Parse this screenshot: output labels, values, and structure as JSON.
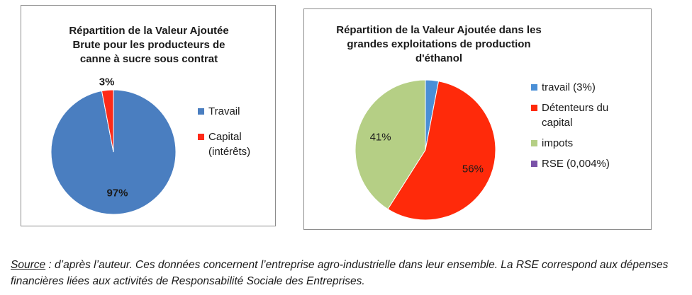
{
  "chart_data": [
    {
      "type": "pie",
      "title": "Répartition de la Valeur Ajoutée\nBrute pour les producteurs de\ncanne à sucre sous contrat",
      "categories": [
        "Travail",
        "Capital\n(intérêts)"
      ],
      "values": [
        97,
        3
      ],
      "data_labels": [
        "97%",
        "3%"
      ],
      "colors": [
        "#4a7ec0",
        "#ff2a18"
      ],
      "legend_placement": "right"
    },
    {
      "type": "pie",
      "title": "Répartition de la Valeur Ajoutée dans les\ngrandes exploitations de production\nd'éthanol",
      "categories": [
        "travail (3%)",
        "Détenteurs du\ncapital",
        "impots",
        "RSE (0,004%)"
      ],
      "values": [
        3,
        56,
        41,
        0.004
      ],
      "data_labels": [
        "",
        "56%",
        "41%",
        ""
      ],
      "colors": [
        "#4a8fd6",
        "#ff2a0a",
        "#b5cf85",
        "#7a52a8"
      ],
      "legend_placement": "right"
    }
  ],
  "caption": {
    "source_label": "Source",
    "text": " : d’après l’auteur. Ces données concernent l’entreprise agro-industrielle dans leur ensemble. La RSE correspond aux dépenses financières liées aux activités de Responsabilité Sociale des Entreprises."
  }
}
